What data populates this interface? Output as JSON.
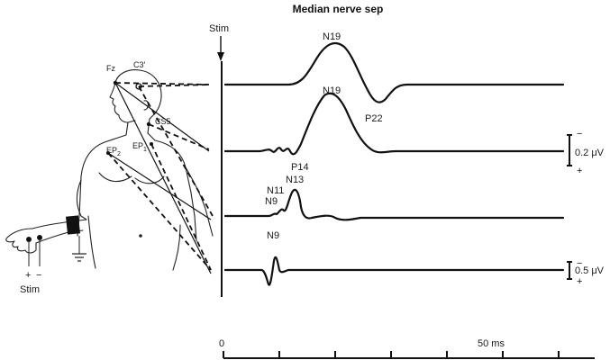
{
  "title": "Median nerve sep",
  "stim_marker": "Stim",
  "stim_hand_label": "Stim",
  "electrodes": {
    "fz": "Fz",
    "c3": "C3′",
    "cs5": "CS5",
    "ep2": "EP",
    "ep2_sub": "2",
    "ep1": "EP",
    "ep1_sub": "1"
  },
  "hand_polarity": {
    "plus": "+",
    "minus": "−"
  },
  "waves": {
    "n19_top": "N19",
    "p22": "P22",
    "n19_mid": "N19",
    "p14": "P14",
    "n13": "N13",
    "n11": "N11",
    "n9_mid": "N9",
    "n9_bottom": "N9"
  },
  "scale_top": {
    "minus": "−",
    "value": "0.2 μV",
    "plus": "+"
  },
  "scale_bottom": {
    "minus": "−",
    "value": "0.5 μV",
    "plus": "+"
  },
  "time_axis": {
    "start": "0",
    "mid": "50 ms"
  }
}
